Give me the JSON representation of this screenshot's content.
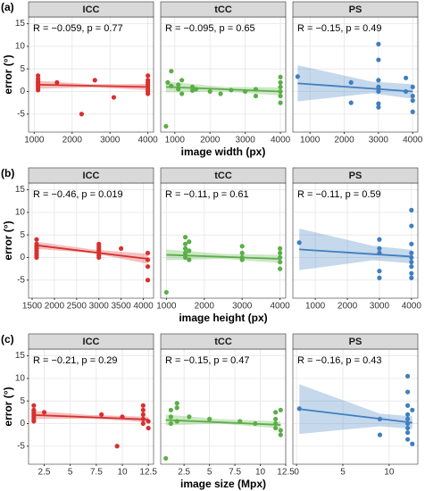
{
  "rows": [
    {
      "label": "(a)",
      "x_label": "image width (px)",
      "y_label": "error (°)"
    },
    {
      "label": "(b)",
      "x_label": "image height (px)",
      "y_label": "error (°)"
    },
    {
      "label": "(c)",
      "x_label": "image size (Mpx)",
      "y_label": "error (°)"
    }
  ],
  "chart_data": [
    {
      "type": "scatter",
      "title": "ICC",
      "annotation": "R = −0.059, p = 0.77",
      "color": "#d7312e",
      "grid": true,
      "xlim": [
        850,
        4150
      ],
      "xticks": [
        1000,
        2000,
        3000,
        4000
      ],
      "ylim": [
        -9,
        16.5
      ],
      "yticks": [
        -5,
        0,
        5,
        10,
        15
      ],
      "x": [
        1100,
        1100,
        1100,
        1100,
        1100,
        1100,
        1100,
        1600,
        2250,
        2600,
        3100,
        4000,
        4000,
        4000,
        4000,
        4000,
        4000,
        4000,
        4000
      ],
      "y": [
        3.5,
        2.8,
        2.2,
        1.8,
        1.3,
        0.8,
        0.3,
        2,
        -5,
        2.5,
        -1.3,
        3.5,
        2.5,
        2,
        1.5,
        1,
        0.5,
        0,
        -0.5
      ],
      "fit": {
        "x": [
          1100,
          4000
        ],
        "y": [
          1.5,
          1.0
        ]
      },
      "band": {
        "x": [
          1100,
          2550,
          4000
        ],
        "lower": [
          0.6,
          0.9,
          0.3
        ],
        "upper": [
          2.4,
          1.6,
          1.7
        ]
      }
    },
    {
      "type": "scatter",
      "title": "tCC",
      "annotation": "R = −0.095, p = 0.65",
      "color": "#5aae47",
      "grid": true,
      "xlim": [
        600,
        4150
      ],
      "xticks": [
        1000,
        2000,
        3000,
        4000
      ],
      "ylim": [
        -9,
        16.5
      ],
      "yticks": [
        -5,
        0,
        5,
        10,
        15
      ],
      "x": [
        750,
        800,
        900,
        900,
        1100,
        1100,
        1200,
        1200,
        1500,
        1500,
        1600,
        2000,
        2300,
        2600,
        3000,
        3300,
        3300,
        4000,
        4000,
        4000,
        4000,
        4000,
        4000
      ],
      "y": [
        -7.7,
        2,
        4.5,
        1.2,
        1.5,
        0.5,
        -0.5,
        2.5,
        1,
        0.2,
        0.5,
        0,
        -0.5,
        0.3,
        0,
        -1,
        0.5,
        3.2,
        2,
        1,
        0,
        -1,
        -2.5
      ],
      "fit": {
        "x": [
          750,
          4000
        ],
        "y": [
          1.0,
          0.0
        ]
      },
      "band": {
        "x": [
          750,
          2400,
          4000
        ],
        "lower": [
          -0.2,
          0,
          -0.9
        ],
        "upper": [
          2.2,
          1.0,
          0.9
        ]
      }
    },
    {
      "type": "scatter",
      "title": "PS",
      "annotation": "R = −0.15, p = 0.49",
      "color": "#3f7fbf",
      "grid": true,
      "xlim": [
        500,
        4150
      ],
      "xticks": [
        1000,
        2000,
        3000,
        4000
      ],
      "ylim": [
        -9,
        16.5
      ],
      "yticks": [
        -5,
        0,
        5,
        10,
        15
      ],
      "x": [
        640,
        2200,
        2200,
        3000,
        3000,
        3000,
        3000,
        3000,
        3000,
        3000,
        3800,
        3800,
        4000,
        4000,
        4000,
        4000
      ],
      "y": [
        3.3,
        2,
        -2.5,
        10.5,
        7,
        2.5,
        1,
        0,
        -2.7,
        -3.5,
        3,
        0,
        1,
        -1,
        -2,
        -4.5
      ],
      "fit": {
        "x": [
          640,
          4000
        ],
        "y": [
          1.8,
          0.0
        ]
      },
      "band": {
        "x": [
          640,
          2800,
          4000
        ],
        "lower": [
          -2.2,
          -0.4,
          -1.6
        ],
        "upper": [
          5.8,
          2.2,
          1.6
        ]
      }
    },
    {
      "type": "scatter",
      "title": "ICC",
      "annotation": "R = −0.46, p = 0.019",
      "color": "#d7312e",
      "grid": true,
      "xlim": [
        1420,
        4230
      ],
      "xticks": [
        1500,
        2000,
        2500,
        3000,
        3500,
        4000
      ],
      "ylim": [
        -9,
        16.5
      ],
      "yticks": [
        -5,
        0,
        5,
        10,
        15
      ],
      "x": [
        1600,
        1600,
        1600,
        1600,
        1600,
        1600,
        1600,
        1600,
        3000,
        3000,
        3000,
        3000,
        3000,
        3000,
        3000,
        3500,
        4100,
        4100,
        4100,
        4100
      ],
      "y": [
        4,
        3,
        2.5,
        2,
        1.5,
        1,
        0.5,
        0,
        3,
        2.5,
        2,
        1.5,
        1,
        0.5,
        0,
        2,
        1,
        -0.5,
        -2,
        -5
      ],
      "fit": {
        "x": [
          1600,
          4100
        ],
        "y": [
          2.7,
          -0.3
        ]
      },
      "band": {
        "x": [
          1600,
          2850,
          4100
        ],
        "lower": [
          1.9,
          1.0,
          -1.4
        ],
        "upper": [
          3.5,
          1.8,
          0.8
        ]
      }
    },
    {
      "type": "scatter",
      "title": "tCC",
      "annotation": "R = −0.11, p = 0.61",
      "color": "#5aae47",
      "grid": true,
      "xlim": [
        850,
        4150
      ],
      "xticks": [
        1000,
        2000,
        3000,
        4000
      ],
      "ylim": [
        -9,
        16.5
      ],
      "yticks": [
        -5,
        0,
        5,
        10,
        15
      ],
      "x": [
        1000,
        1500,
        1500,
        1500,
        1500,
        1500,
        1600,
        1600,
        1600,
        3000,
        3000,
        3000,
        3000,
        4000,
        4000,
        4000,
        4000,
        4000
      ],
      "y": [
        -7.7,
        4.5,
        3,
        2,
        1,
        0,
        3.5,
        1.5,
        -0.5,
        2.5,
        1,
        0,
        -0.5,
        2,
        1,
        0,
        -1,
        -2.5
      ],
      "fit": {
        "x": [
          1000,
          4000
        ],
        "y": [
          0.6,
          -0.3
        ]
      },
      "band": {
        "x": [
          1000,
          2500,
          4000
        ],
        "lower": [
          -0.6,
          -0.3,
          -1.2
        ],
        "upper": [
          1.8,
          0.8,
          0.6
        ]
      }
    },
    {
      "type": "scatter",
      "title": "PS",
      "annotation": "R = −0.11, p = 0.59",
      "color": "#3f7fbf",
      "grid": true,
      "xlim": [
        300,
        4200
      ],
      "xticks": [
        1000,
        2000,
        3000,
        4000
      ],
      "ylim": [
        -9,
        16.5
      ],
      "yticks": [
        -5,
        0,
        5,
        10,
        15
      ],
      "x": [
        500,
        3000,
        3000,
        3000,
        3000,
        3000,
        4000,
        4000,
        4000,
        4000,
        4000,
        4000,
        4000,
        4000,
        4000
      ],
      "y": [
        3.3,
        4,
        2,
        1,
        -3,
        -4.5,
        10.5,
        7,
        3,
        1,
        0,
        -1,
        -2,
        -3.5,
        -4.5
      ],
      "fit": {
        "x": [
          500,
          4000
        ],
        "y": [
          1.8,
          0.2
        ]
      },
      "band": {
        "x": [
          500,
          2800,
          4000
        ],
        "lower": [
          -2.8,
          -0.6,
          -1.3
        ],
        "upper": [
          6.4,
          2.6,
          1.7
        ]
      }
    },
    {
      "type": "scatter",
      "title": "ICC",
      "annotation": "R = −0.21, p = 0.29",
      "color": "#d7312e",
      "grid": true,
      "xlim": [
        1.0,
        13.0
      ],
      "xticks": [
        2.5,
        5,
        7.5,
        10,
        12.5
      ],
      "ylim": [
        -9,
        16.5
      ],
      "yticks": [
        -5,
        0,
        5,
        10,
        15
      ],
      "x": [
        1.5,
        1.5,
        1.5,
        1.5,
        1.5,
        1.5,
        1.5,
        2.5,
        8,
        9.5,
        10,
        12,
        12,
        12,
        12,
        12,
        12.5,
        12.5
      ],
      "y": [
        4,
        3,
        2.5,
        2,
        1.5,
        1,
        0.5,
        2.5,
        2,
        -5,
        1.5,
        4,
        3,
        2,
        1,
        0,
        0.5,
        -1
      ],
      "fit": {
        "x": [
          1.5,
          12.5
        ],
        "y": [
          1.9,
          0.9
        ]
      },
      "band": {
        "x": [
          1.5,
          7,
          12.5
        ],
        "lower": [
          1.0,
          1.1,
          0.3
        ],
        "upper": [
          2.8,
          1.9,
          1.5
        ]
      }
    },
    {
      "type": "scatter",
      "title": "tCC",
      "annotation": "R = −0.15, p = 0.47",
      "color": "#5aae47",
      "grid": true,
      "xlim": [
        0.2,
        12.5
      ],
      "xticks": [
        2.5,
        5,
        7.5,
        10,
        12.5
      ],
      "ylim": [
        -9,
        16.5
      ],
      "yticks": [
        -5,
        0,
        5,
        10,
        15
      ],
      "x": [
        0.7,
        1.2,
        1.2,
        1.2,
        1.8,
        1.8,
        1.8,
        3,
        5,
        8,
        9.5,
        11.5,
        11.5,
        11.5,
        11.5,
        12,
        12,
        12
      ],
      "y": [
        -7.7,
        3,
        1.5,
        0,
        4.5,
        3.5,
        0.5,
        1.5,
        1,
        0.5,
        0,
        2.5,
        1,
        0,
        -1,
        3,
        -2.5,
        -1.5
      ],
      "fit": {
        "x": [
          0.7,
          12
        ],
        "y": [
          0.8,
          -0.3
        ]
      },
      "band": {
        "x": [
          0.7,
          6,
          12
        ],
        "lower": [
          -0.4,
          0,
          -1.1
        ],
        "upper": [
          2.0,
          1.0,
          0.5
        ]
      }
    },
    {
      "type": "scatter",
      "title": "PS",
      "annotation": "R = −0.16, p = 0.43",
      "color": "#3f7fbf",
      "grid": true,
      "xlim": [
        -0.4,
        13.1
      ],
      "xticks": [
        0,
        5,
        10
      ],
      "ylim": [
        -9,
        16.5
      ],
      "yticks": [
        -5,
        0,
        5,
        10,
        15
      ],
      "x": [
        0.3,
        9,
        9,
        12,
        12,
        12,
        12,
        12,
        12,
        12,
        12,
        12,
        12.5,
        12.5
      ],
      "y": [
        3.3,
        1,
        -2.5,
        10.5,
        7,
        4,
        2,
        1,
        0,
        -1,
        -2,
        -3.5,
        3,
        -4.5
      ],
      "fit": {
        "x": [
          0.3,
          12.5
        ],
        "y": [
          3.2,
          0.2
        ]
      },
      "band": {
        "x": [
          0.3,
          9,
          12.5
        ],
        "lower": [
          -2.3,
          -0.6,
          -1.2
        ],
        "upper": [
          8.7,
          2.2,
          1.6
        ]
      }
    }
  ]
}
